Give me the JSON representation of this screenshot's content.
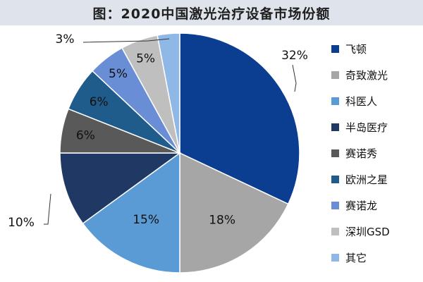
{
  "chart_data": {
    "type": "pie",
    "title": "图：2020中国激光治疗设备市场份额",
    "categories": [
      "飞顿",
      "奇致激光",
      "科医人",
      "半岛医疗",
      "赛诺秀",
      "欧洲之星",
      "赛诺龙",
      "深圳GSD",
      "其它"
    ],
    "values": [
      32,
      18,
      15,
      10,
      6,
      6,
      5,
      5,
      3
    ],
    "value_labels": [
      "32%",
      "18%",
      "15%",
      "10%",
      "6%",
      "6%",
      "5%",
      "5%",
      "3%"
    ],
    "colors": [
      "#0b3d91",
      "#a6a6a6",
      "#5b9bd5",
      "#203864",
      "#595959",
      "#1f5c8b",
      "#6a8ed6",
      "#bfbfbf",
      "#8fb8e6"
    ],
    "legend_position": "right",
    "start": "top",
    "direction": "clockwise"
  }
}
